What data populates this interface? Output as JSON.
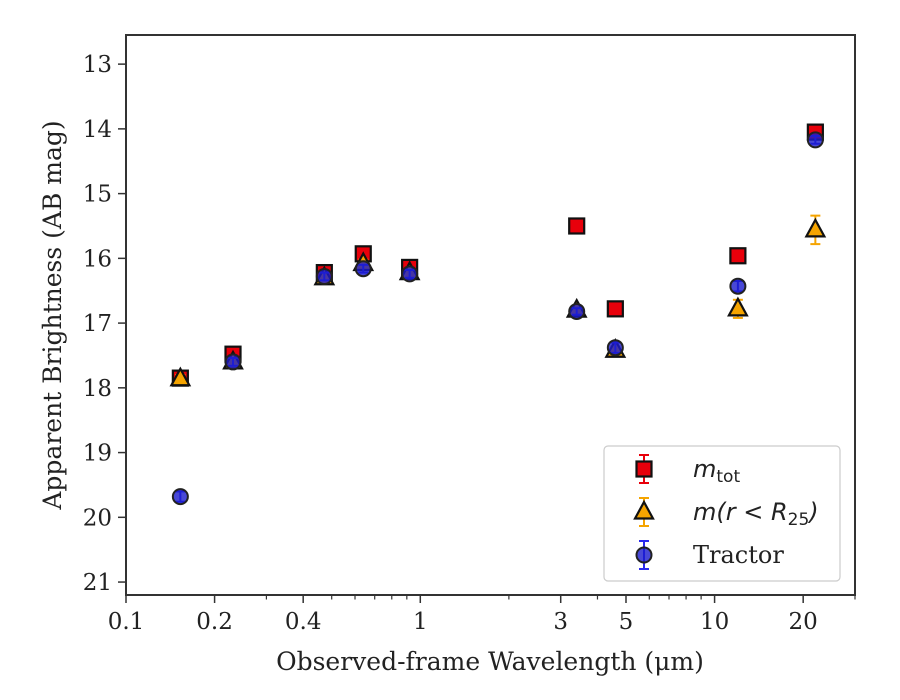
{
  "chart_data": {
    "type": "scatter",
    "xlabel": "Observed-frame Wavelength (μm)",
    "ylabel": "Apparent Brightness (AB mag)",
    "xscale": "log",
    "xlim": [
      0.1,
      30
    ],
    "ylim": [
      21.2,
      12.55
    ],
    "y_inverted": true,
    "grid": false,
    "legend_position": "lower-right",
    "x_ticks": [
      {
        "value": 0.1,
        "label": "0.1"
      },
      {
        "value": 0.2,
        "label": "0.2"
      },
      {
        "value": 0.4,
        "label": "0.4"
      },
      {
        "value": 1,
        "label": "1"
      },
      {
        "value": 3,
        "label": "3"
      },
      {
        "value": 5,
        "label": "5"
      },
      {
        "value": 10,
        "label": "10"
      },
      {
        "value": 20,
        "label": "20"
      }
    ],
    "x_minor_ticks": [
      0.3,
      0.5,
      0.6,
      0.7,
      0.8,
      0.9,
      2,
      4,
      6,
      7,
      8,
      9,
      30
    ],
    "y_ticks": [
      13,
      14,
      15,
      16,
      17,
      18,
      19,
      20,
      21
    ],
    "series": [
      {
        "name": "m_tot",
        "legend_main": "m",
        "legend_sub": "tot",
        "marker": "square",
        "color": "#e8000b",
        "errcolor": "#e8000b",
        "points": [
          {
            "x": 0.153,
            "y": 17.85,
            "err": 0.08
          },
          {
            "x": 0.231,
            "y": 17.48,
            "err": 0.06
          },
          {
            "x": 0.472,
            "y": 16.22,
            "err": 0.06
          },
          {
            "x": 0.64,
            "y": 15.93,
            "err": 0.06
          },
          {
            "x": 0.92,
            "y": 16.14,
            "err": 0.06
          },
          {
            "x": 3.4,
            "y": 15.5,
            "err": 0.05
          },
          {
            "x": 4.6,
            "y": 16.78,
            "err": 0.06
          },
          {
            "x": 12.0,
            "y": 15.96,
            "err": 0.06
          },
          {
            "x": 22.0,
            "y": 14.05,
            "err": 0.06
          }
        ]
      },
      {
        "name": "m(r < R_25)",
        "legend_main": "m(r < R",
        "legend_sub": "25",
        "legend_tail": ")",
        "marker": "triangle",
        "color": "#f5a400",
        "errcolor": "#f5a400",
        "points": [
          {
            "x": 0.153,
            "y": 17.86,
            "err": 0.06
          },
          {
            "x": 0.231,
            "y": 17.6,
            "err": 0.06
          },
          {
            "x": 0.472,
            "y": 16.3,
            "err": 0.06
          },
          {
            "x": 0.64,
            "y": 16.08,
            "err": 0.06
          },
          {
            "x": 0.92,
            "y": 16.22,
            "err": 0.06
          },
          {
            "x": 3.4,
            "y": 16.8,
            "err": 0.06
          },
          {
            "x": 4.6,
            "y": 17.42,
            "err": 0.06
          },
          {
            "x": 12.0,
            "y": 16.78,
            "err": 0.14
          },
          {
            "x": 22.0,
            "y": 15.56,
            "err": 0.22
          }
        ]
      },
      {
        "name": "Tractor",
        "legend_main": "Tractor",
        "marker": "circle",
        "color": "#1a1acc",
        "errcolor": "#2a2aee",
        "points": [
          {
            "x": 0.153,
            "y": 19.68,
            "err": 0.08
          },
          {
            "x": 0.231,
            "y": 17.6,
            "err": 0.06
          },
          {
            "x": 0.472,
            "y": 16.28,
            "err": 0.06
          },
          {
            "x": 0.64,
            "y": 16.16,
            "err": 0.06
          },
          {
            "x": 0.92,
            "y": 16.24,
            "err": 0.06
          },
          {
            "x": 3.4,
            "y": 16.82,
            "err": 0.05
          },
          {
            "x": 4.6,
            "y": 17.38,
            "err": 0.08
          },
          {
            "x": 12.0,
            "y": 16.43,
            "err": 0.08
          },
          {
            "x": 22.0,
            "y": 14.17,
            "err": 0.06
          }
        ]
      }
    ]
  }
}
